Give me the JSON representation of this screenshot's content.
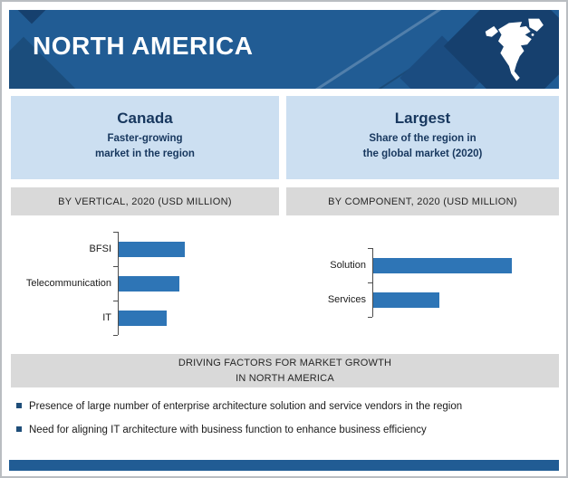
{
  "header": {
    "title": "NORTH AMERICA",
    "icon": "north-america-map-icon"
  },
  "highlights": {
    "left": {
      "title": "Canada",
      "subtitle": "Faster-growing\nmarket in the region"
    },
    "right": {
      "title": "Largest",
      "subtitle": "Share of the region in\nthe global market (2020)"
    }
  },
  "section_headers": {
    "left": "BY VERTICAL,  2020 (USD MILLION)",
    "right": "BY COMPONENT,  2020 (USD MILLION)"
  },
  "chart_data": [
    {
      "type": "bar",
      "orientation": "horizontal",
      "title": "BY VERTICAL,  2020 (USD MILLION)",
      "categories": [
        "BFSI",
        "Telecommunication",
        "IT"
      ],
      "values": [
        100,
        92,
        73
      ],
      "value_note": "no numeric axis labels shown; values are relative bar lengths (longest bar = 100)",
      "bar_color": "#2E75B6",
      "grid": false,
      "legend": false
    },
    {
      "type": "bar",
      "orientation": "horizontal",
      "title": "BY COMPONENT,  2020 (USD MILLION)",
      "categories": [
        "Solution",
        "Services"
      ],
      "values": [
        100,
        48
      ],
      "value_note": "no numeric axis labels shown; values are relative bar lengths (longest bar = 100)",
      "bar_color": "#2E75B6",
      "grid": false,
      "legend": false
    }
  ],
  "driving_factors": {
    "text": "DRIVING FACTORS FOR MARKET GROWTH\nIN NORTH AMERICA"
  },
  "bullets": [
    "Presence of large number of enterprise architecture solution and service vendors in the region",
    "Need for aligning IT architecture with business function to enhance business efficiency"
  ],
  "colors": {
    "banner_blue": "#215C94",
    "deco_dark_blue": "#16406E",
    "panel_light_blue": "#CCDFF1",
    "section_gray": "#D9D9D9",
    "bar_blue": "#2E75B6",
    "navy_text": "#17375E",
    "bullet_square": "#1F4E79"
  }
}
